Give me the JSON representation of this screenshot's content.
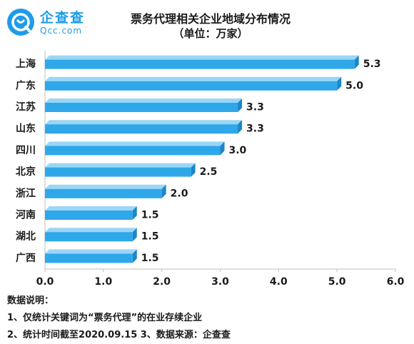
{
  "logo": {
    "cn": "企查查",
    "en": "Qcc.com"
  },
  "chart_data": {
    "type": "bar",
    "orientation": "horizontal",
    "title": "票务代理相关企业地域分布情况",
    "subtitle": "（单位：万家）",
    "categories": [
      "上海",
      "广东",
      "江苏",
      "山东",
      "四川",
      "北京",
      "浙江",
      "河南",
      "湖北",
      "广西"
    ],
    "values": [
      5.3,
      5.0,
      3.3,
      3.3,
      3.0,
      2.5,
      2.0,
      1.5,
      1.5,
      1.5
    ],
    "value_labels": [
      "5.3",
      "5.0",
      "3.3",
      "3.3",
      "3.0",
      "2.5",
      "2.0",
      "1.5",
      "1.5",
      "1.5"
    ],
    "xlim": [
      0,
      6
    ],
    "xticks": [
      "0.0",
      "1.0",
      "2.0",
      "3.0",
      "4.0",
      "5.0",
      "6.0"
    ],
    "grid": false,
    "bar_color": "#2fa8ea",
    "bar_top_color": "#9ad6f6",
    "bar_end_color": "#1c86c8"
  },
  "notes": {
    "heading": "数据说明：",
    "line1": "1、仅统计关键词为“票务代理”的在业存续企业",
    "line2": "2、统计时间截至2020.09.15   3、数据来源：企查查"
  }
}
